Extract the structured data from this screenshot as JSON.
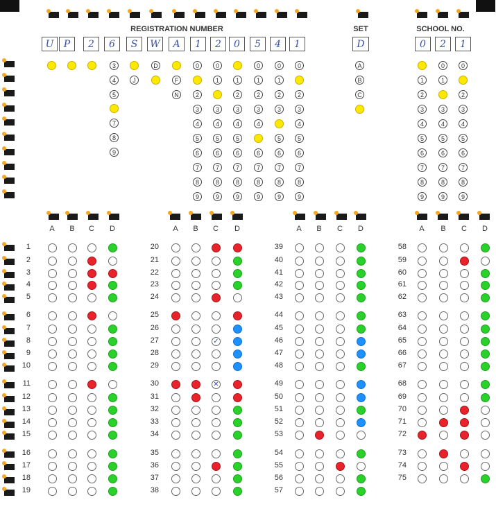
{
  "sheet": {
    "registration_label": "REGISTRATION NUMBER",
    "set_label": "SET",
    "school_label": "SCHOOL NO.",
    "registration_chars": [
      "U",
      "P",
      "2",
      "6",
      "S",
      "W",
      "A",
      "1",
      "2",
      "0",
      "5",
      "4",
      "1"
    ],
    "set_char": "D",
    "school_chars": [
      "0",
      "2",
      "1"
    ]
  },
  "fill_colors": {
    "yellow": "#fde800",
    "green": "#2bd12b",
    "red": "#e8232b",
    "blue": "#1e90ff"
  },
  "answer_columns": [
    "A",
    "B",
    "C",
    "D"
  ],
  "answers": [
    {
      "q": 1,
      "fills": {
        "D": "green"
      }
    },
    {
      "q": 2,
      "fills": {
        "C": "red"
      }
    },
    {
      "q": 3,
      "fills": {
        "C": "red",
        "D": "red"
      }
    },
    {
      "q": 4,
      "fills": {
        "C": "red",
        "D": "green"
      }
    },
    {
      "q": 5,
      "fills": {
        "D": "green"
      }
    },
    {
      "q": 6,
      "fills": {
        "C": "red"
      }
    },
    {
      "q": 7,
      "fills": {
        "D": "green"
      }
    },
    {
      "q": 8,
      "fills": {
        "D": "green"
      }
    },
    {
      "q": 9,
      "fills": {
        "D": "green"
      }
    },
    {
      "q": 10,
      "fills": {
        "D": "green"
      }
    },
    {
      "q": 11,
      "fills": {
        "C": "red"
      }
    },
    {
      "q": 12,
      "fills": {
        "D": "green"
      }
    },
    {
      "q": 13,
      "fills": {
        "D": "green"
      }
    },
    {
      "q": 14,
      "fills": {
        "D": "green"
      }
    },
    {
      "q": 15,
      "fills": {
        "D": "green"
      }
    },
    {
      "q": 16,
      "fills": {
        "D": "green"
      }
    },
    {
      "q": 17,
      "fills": {
        "D": "green"
      }
    },
    {
      "q": 18,
      "fills": {
        "D": "green"
      }
    },
    {
      "q": 19,
      "fills": {
        "D": "green"
      }
    },
    {
      "q": 20,
      "fills": {
        "C": "red",
        "D": "red"
      }
    },
    {
      "q": 21,
      "fills": {
        "D": "green"
      }
    },
    {
      "q": 22,
      "fills": {
        "D": "green"
      }
    },
    {
      "q": 23,
      "fills": {
        "D": "green"
      }
    },
    {
      "q": 24,
      "fills": {
        "C": "red"
      }
    },
    {
      "q": 25,
      "fills": {
        "A": "red",
        "D": "red"
      }
    },
    {
      "q": 26,
      "fills": {
        "D": "blue"
      }
    },
    {
      "q": 27,
      "fills": {
        "C": "mark:✓",
        "D": "blue"
      }
    },
    {
      "q": 28,
      "fills": {
        "D": "blue"
      }
    },
    {
      "q": 29,
      "fills": {
        "D": "blue"
      }
    },
    {
      "q": 30,
      "fills": {
        "A": "red",
        "B": "red",
        "C": "mark:✕",
        "D": "red"
      }
    },
    {
      "q": 31,
      "fills": {
        "B": "red",
        "D": "red"
      }
    },
    {
      "q": 32,
      "fills": {
        "D": "green"
      }
    },
    {
      "q": 33,
      "fills": {
        "D": "green"
      }
    },
    {
      "q": 34,
      "fills": {
        "D": "green"
      }
    },
    {
      "q": 35,
      "fills": {
        "D": "green"
      }
    },
    {
      "q": 36,
      "fills": {
        "C": "red",
        "D": "green"
      }
    },
    {
      "q": 37,
      "fills": {
        "D": "green"
      }
    },
    {
      "q": 38,
      "fills": {
        "D": "green"
      }
    },
    {
      "q": 39,
      "fills": {
        "D": "green"
      }
    },
    {
      "q": 40,
      "fills": {
        "D": "green"
      }
    },
    {
      "q": 41,
      "fills": {
        "D": "green"
      }
    },
    {
      "q": 42,
      "fills": {
        "D": "green"
      }
    },
    {
      "q": 43,
      "fills": {
        "D": "green"
      }
    },
    {
      "q": 44,
      "fills": {
        "D": "green"
      }
    },
    {
      "q": 45,
      "fills": {
        "D": "green"
      }
    },
    {
      "q": 46,
      "fills": {
        "D": "blue"
      }
    },
    {
      "q": 47,
      "fills": {
        "D": "blue"
      }
    },
    {
      "q": 48,
      "fills": {
        "D": "green"
      }
    },
    {
      "q": 49,
      "fills": {
        "D": "blue"
      }
    },
    {
      "q": 50,
      "fills": {
        "D": "blue"
      }
    },
    {
      "q": 51,
      "fills": {
        "D": "green"
      }
    },
    {
      "q": 52,
      "fills": {
        "D": "blue"
      }
    },
    {
      "q": 53,
      "fills": {
        "B": "red"
      }
    },
    {
      "q": 54,
      "fills": {
        "D": "green"
      }
    },
    {
      "q": 55,
      "fills": {
        "C": "red"
      }
    },
    {
      "q": 56,
      "fills": {
        "D": "green"
      }
    },
    {
      "q": 57,
      "fills": {
        "D": "green"
      }
    },
    {
      "q": 58,
      "fills": {
        "D": "green"
      }
    },
    {
      "q": 59,
      "fills": {
        "C": "red"
      }
    },
    {
      "q": 60,
      "fills": {
        "D": "green"
      }
    },
    {
      "q": 61,
      "fills": {
        "D": "green"
      }
    },
    {
      "q": 62,
      "fills": {
        "D": "green"
      }
    },
    {
      "q": 63,
      "fills": {
        "D": "green"
      }
    },
    {
      "q": 64,
      "fills": {
        "D": "green"
      }
    },
    {
      "q": 65,
      "fills": {
        "D": "green"
      }
    },
    {
      "q": 66,
      "fills": {
        "D": "green"
      }
    },
    {
      "q": 67,
      "fills": {
        "D": "green"
      }
    },
    {
      "q": 68,
      "fills": {
        "D": "green"
      }
    },
    {
      "q": 69,
      "fills": {
        "D": "green"
      }
    },
    {
      "q": 70,
      "fills": {
        "C": "red"
      }
    },
    {
      "q": 71,
      "fills": {
        "B": "red",
        "C": "red"
      }
    },
    {
      "q": 72,
      "fills": {
        "A": "red",
        "C": "red"
      }
    },
    {
      "q": 73,
      "fills": {
        "B": "red"
      }
    },
    {
      "q": 74,
      "fills": {
        "C": "red"
      }
    },
    {
      "q": 75,
      "fills": {
        "D": "green"
      }
    }
  ]
}
